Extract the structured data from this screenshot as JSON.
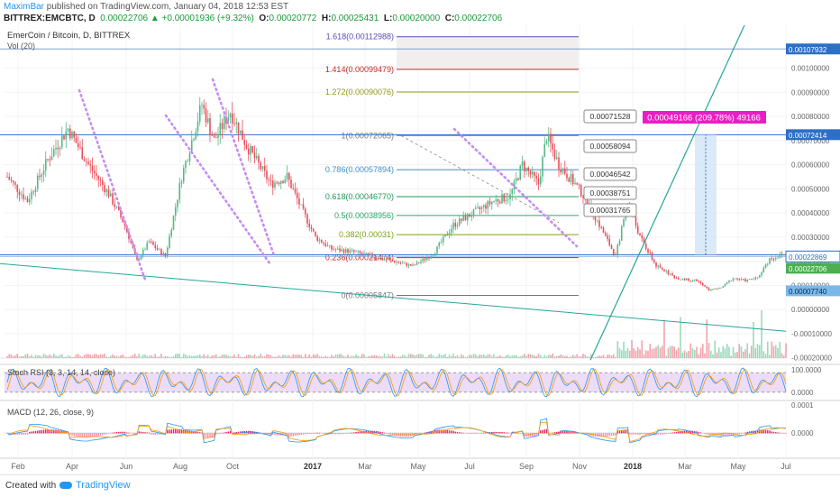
{
  "header": {
    "author": "MaximBar",
    "published": "published on TradingView.com, January 04, 2018 12:53 EST",
    "symbol": "BITTREX:EMCBTC, D",
    "open_label": "O:",
    "open_value": "0.00020772",
    "change": "0.00022706 ▲ +0.00001936 (+9.32%)",
    "high_label": "H:",
    "high_value": "0.00025431",
    "low_label": "L:",
    "low_value": "0.00020000",
    "close_label": "C:",
    "close_value": "0.00022706"
  },
  "footer": {
    "created": "Created with",
    "brand": "TradingView"
  },
  "chart_data": {
    "type": "candlestick",
    "title": "EmerCoin / Bitcoin, D, BITTREX",
    "volume_label": "Vol (20)",
    "x_ticks": [
      "Feb",
      "Apr",
      "Jun",
      "Aug",
      "Oct",
      "2017",
      "Mar",
      "May",
      "Jul",
      "Sep",
      "Nov",
      "2018",
      "Mar",
      "May",
      "Jul"
    ],
    "y_ticks": [
      "0.00100000",
      "0.00090000",
      "0.00080000",
      "0.00070000",
      "0.00060000",
      "0.00050000",
      "0.00040000",
      "0.00030000",
      "0.00020000",
      "0.00010000",
      "0.00000000",
      "-0.00010000",
      "-0.00020000"
    ],
    "y_range": [
      -0.000235,
      0.00117
    ],
    "price_path": [
      [
        0,
        0.00055
      ],
      [
        10,
        0.00045
      ],
      [
        20,
        0.00062
      ],
      [
        30,
        0.00075
      ],
      [
        40,
        0.0006
      ],
      [
        50,
        0.00048
      ],
      [
        58,
        0.00035
      ],
      [
        64,
        0.0002
      ],
      [
        70,
        0.00028
      ],
      [
        78,
        0.00022
      ],
      [
        86,
        0.00055
      ],
      [
        96,
        0.00085
      ],
      [
        102,
        0.0007
      ],
      [
        110,
        0.00082
      ],
      [
        118,
        0.00068
      ],
      [
        124,
        0.0006
      ],
      [
        130,
        0.00052
      ],
      [
        138,
        0.00055
      ],
      [
        145,
        0.00042
      ],
      [
        152,
        0.0003
      ],
      [
        160,
        0.00025
      ],
      [
        170,
        0.00024
      ],
      [
        180,
        0.00022
      ],
      [
        190,
        0.0002
      ],
      [
        200,
        0.00018
      ],
      [
        210,
        0.00023
      ],
      [
        220,
        0.00035
      ],
      [
        230,
        0.0004
      ],
      [
        240,
        0.00045
      ],
      [
        248,
        0.00047
      ],
      [
        254,
        0.0006
      ],
      [
        262,
        0.00052
      ],
      [
        266,
        0.00072
      ],
      [
        272,
        0.0006
      ],
      [
        280,
        0.00052
      ],
      [
        286,
        0.00045
      ],
      [
        292,
        0.00035
      ],
      [
        300,
        0.00022
      ],
      [
        306,
        0.00045
      ],
      [
        312,
        0.0003
      ],
      [
        320,
        0.00018
      ],
      [
        330,
        0.00013
      ],
      [
        340,
        0.00012
      ],
      [
        346,
        8e-05
      ],
      [
        352,
        9e-05
      ],
      [
        358,
        0.00013
      ],
      [
        364,
        0.00012
      ],
      [
        370,
        0.00013
      ],
      [
        376,
        0.00021
      ],
      [
        384,
        0.00023
      ]
    ],
    "last_values": {
      "price": "0.00022706",
      "high_marker": "0.00022869",
      "top_line": "0.00107932",
      "resistance": "0.00072414",
      "support": "0.00007740"
    },
    "fibonacci": [
      {
        "level": "1.618",
        "value": "0.00112988",
        "color": "#5b4bb7"
      },
      {
        "level": "1.414",
        "value": "0.00099479",
        "color": "#c62828"
      },
      {
        "level": "1.272",
        "value": "0.00090076",
        "color": "#8d9d15"
      },
      {
        "level": "1",
        "value": "0.00072065",
        "color": "#777777"
      },
      {
        "level": "0.786",
        "value": "0.00057894",
        "color": "#3a8fcc"
      },
      {
        "level": "0.618",
        "value": "0.00046770",
        "color": "#1a9a5a"
      },
      {
        "level": "0.5",
        "value": "0.00038956",
        "color": "#2aa36a"
      },
      {
        "level": "0.382",
        "value": "0.00031",
        "color": "#7aa512"
      },
      {
        "level": "0.236",
        "value": "0.00021474",
        "color": "#c62828"
      },
      {
        "level": "0",
        "value": "0.00005847",
        "color": "#777777"
      }
    ],
    "callouts": [
      "0.00071528",
      "0.00058094",
      "0.00046542",
      "0.00038751",
      "0.00031765"
    ],
    "measure": "0.00049166 (209.78%) 49166",
    "stoch_label": "Stoch RSI (3, 3, 14, 14, close)",
    "stoch_ticks": [
      "100.0000",
      "0.0000"
    ],
    "macd_label": "MACD (12, 26, close, 9)",
    "macd_ticks": [
      "0.0001",
      "0.0000"
    ]
  },
  "colors": {
    "bull": "#53b987",
    "bear": "#eb4d5c",
    "accent": "#e91ec4",
    "trend": "#26a69a",
    "level": "#2d6fc4"
  }
}
